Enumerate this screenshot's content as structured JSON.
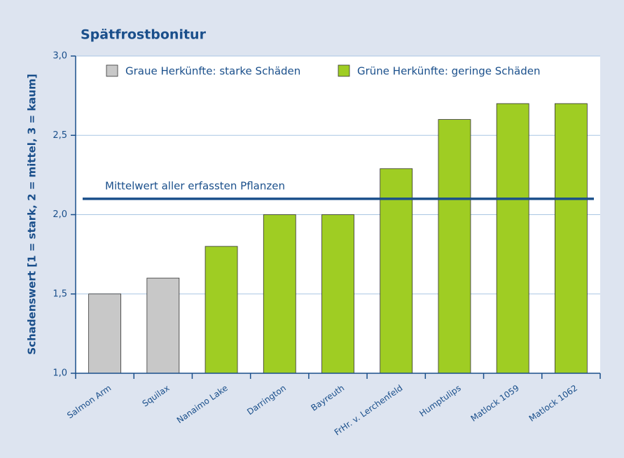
{
  "chart_data": {
    "type": "bar",
    "title": "Spätfrostbonitur",
    "y_label": "Schadenswert  [1 = stark, 2 = mittel, 3 = kaum]",
    "categories": [
      "Salmon Arm",
      "Squilax",
      "Nanaimo Lake",
      "Darrington",
      "Bayreuth",
      "FrHr. v. Lerchenfeld",
      "Humptulips",
      "Matlock 1059",
      "Matlock 1062"
    ],
    "series": [
      {
        "name": "Graue Herkünfte: starke Schäden",
        "color": "#c8c8c8",
        "values": [
          1.5,
          1.6,
          null,
          null,
          null,
          null,
          null,
          null,
          null
        ]
      },
      {
        "name": "Grüne Herkünfte: geringe Schäden",
        "color": "#9fcd23",
        "values": [
          null,
          null,
          1.8,
          2.0,
          2.0,
          2.29,
          2.6,
          2.7,
          2.7
        ]
      }
    ],
    "reference_line": {
      "label": "Mittelwert aller erfassten Pflanzen",
      "value": 2.1,
      "color": "#1a4f8b"
    },
    "ylim": [
      1,
      3
    ],
    "yticks": [
      {
        "value": 1,
        "label": "1,0"
      },
      {
        "value": 1.5,
        "label": "1,5"
      },
      {
        "value": 2,
        "label": "2,0"
      },
      {
        "value": 2.5,
        "label": "2,5"
      },
      {
        "value": 3,
        "label": "3,0"
      }
    ],
    "grid": true
  }
}
